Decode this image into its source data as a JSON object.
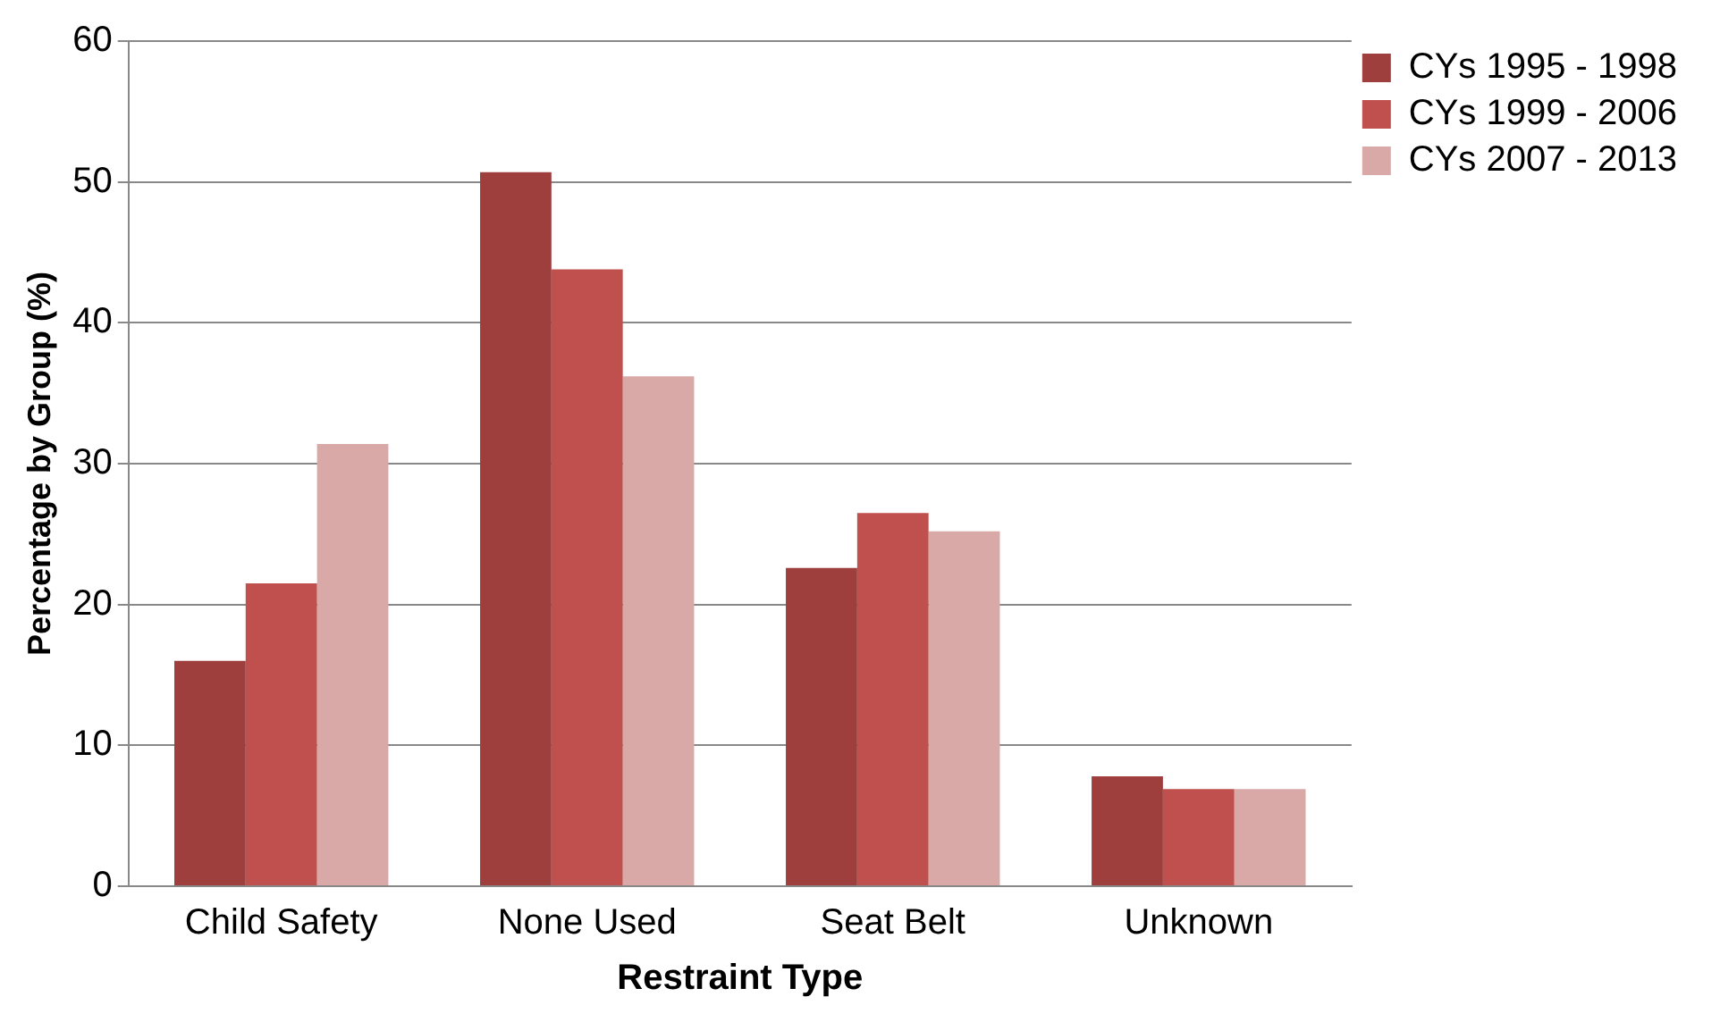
{
  "chart_data": {
    "type": "bar",
    "xlabel": "Restraint Type",
    "ylabel": "Percentage by Group (%)",
    "categories": [
      "Child Safety",
      "None Used",
      "Seat Belt",
      "Unknown"
    ],
    "series": [
      {
        "name": "CYs 1995 - 1998",
        "color": "#9e3f3d",
        "values": [
          16,
          50.7,
          22.6,
          7.8
        ]
      },
      {
        "name": "CYs 1999 - 2006",
        "color": "#c0504d",
        "values": [
          21.5,
          43.8,
          26.5,
          6.9
        ]
      },
      {
        "name": "CYs 2007 - 2013",
        "color": "#d9a9a8",
        "values": [
          31.4,
          36.2,
          25.2,
          6.9
        ]
      }
    ],
    "ylim": [
      0,
      60
    ],
    "yticks": [
      0,
      10,
      20,
      30,
      40,
      50,
      60
    ],
    "grid": "y",
    "legend": "top right"
  }
}
